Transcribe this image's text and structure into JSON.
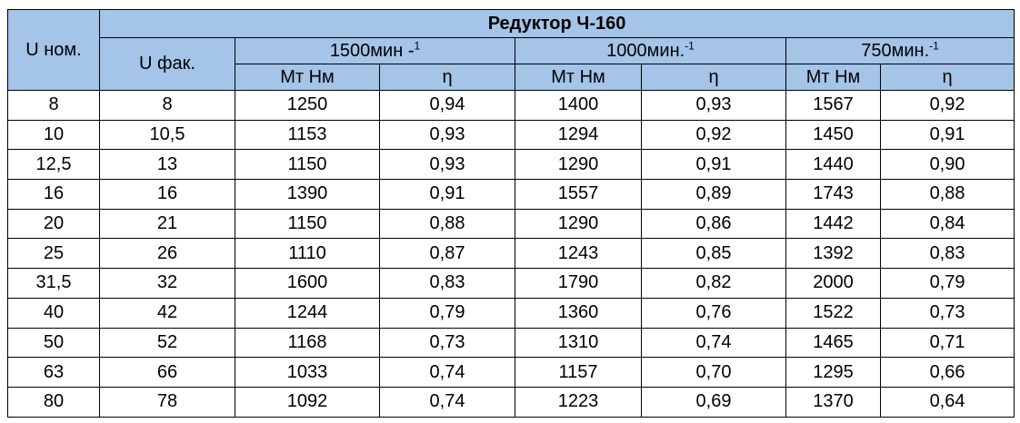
{
  "table": {
    "title": "Редуктор Ч-160",
    "col_u_nom": "U ном.",
    "col_u_fact": "U фак.",
    "speeds": [
      {
        "label": "1500мин -",
        "sup": "1"
      },
      {
        "label": "1000мин.",
        "sup": "-1"
      },
      {
        "label": "750мин.",
        "sup": "-1"
      }
    ],
    "sub_torque": "Мт Нм",
    "sub_eff": "η",
    "rows": [
      [
        "8",
        "8",
        "1250",
        "0,94",
        "1400",
        "0,93",
        "1567",
        "0,92"
      ],
      [
        "10",
        "10,5",
        "1153",
        "0,93",
        "1294",
        "0,92",
        "1450",
        "0,91"
      ],
      [
        "12,5",
        "13",
        "1150",
        "0,93",
        "1290",
        "0,91",
        "1440",
        "0,90"
      ],
      [
        "16",
        "16",
        "1390",
        "0,91",
        "1557",
        "0,89",
        "1743",
        "0,88"
      ],
      [
        "20",
        "21",
        "1150",
        "0,88",
        "1290",
        "0,86",
        "1442",
        "0,84"
      ],
      [
        "25",
        "26",
        "1110",
        "0,87",
        "1243",
        "0,85",
        "1392",
        "0,83"
      ],
      [
        "31,5",
        "32",
        "1600",
        "0,83",
        "1790",
        "0,82",
        "2000",
        "0,79"
      ],
      [
        "40",
        "42",
        "1244",
        "0,79",
        "1360",
        "0,76",
        "1522",
        "0,73"
      ],
      [
        "50",
        "52",
        "1168",
        "0,73",
        "1310",
        "0,74",
        "1465",
        "0,71"
      ],
      [
        "63",
        "66",
        "1033",
        "0,74",
        "1157",
        "0,70",
        "1295",
        "0,66"
      ],
      [
        "80",
        "78",
        "1092",
        "0,74",
        "1223",
        "0,69",
        "1370",
        "0,64"
      ]
    ]
  },
  "colors": {
    "header_bg": "#a4c4e8",
    "cell_bg": "#ffffff",
    "border": "#000000"
  }
}
